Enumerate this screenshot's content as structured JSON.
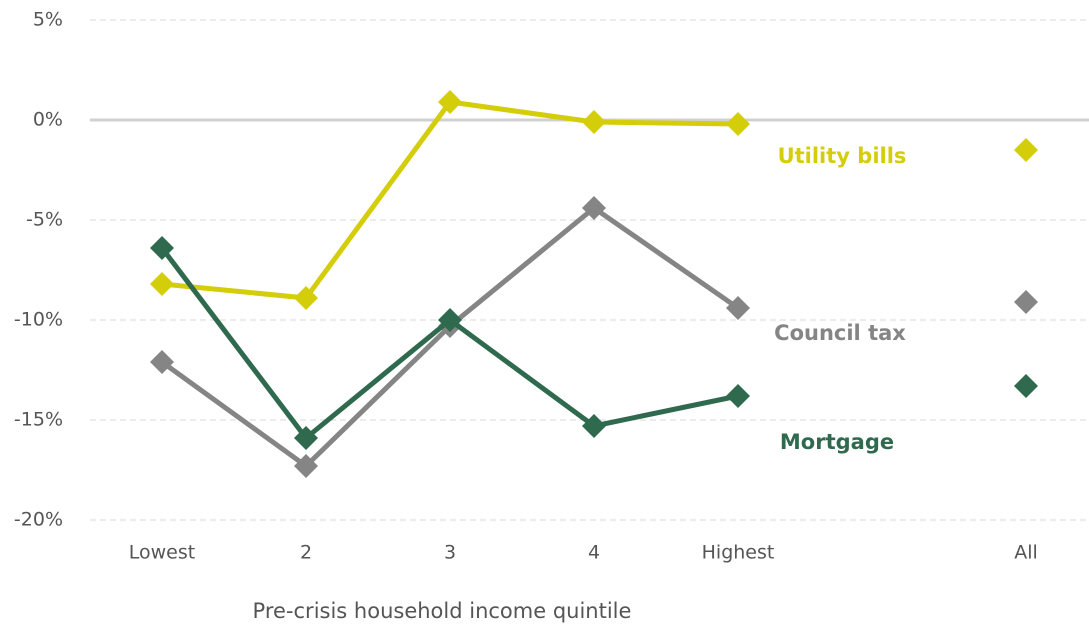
{
  "chart_data": {
    "type": "line",
    "x_label": "Pre-crisis household income quintile",
    "categories": [
      "Lowest",
      "2",
      "3",
      "4",
      "Highest",
      null,
      "All"
    ],
    "series": [
      {
        "name": "Utility bills",
        "color": "#d4cd0a",
        "values": [
          -8.2,
          -8.9,
          0.9,
          -0.1,
          -0.2,
          null,
          -1.5
        ]
      },
      {
        "name": "Council tax",
        "color": "#858585",
        "values": [
          -12.1,
          -17.3,
          -10.3,
          -4.4,
          -9.4,
          null,
          -9.1
        ]
      },
      {
        "name": "Mortgage",
        "color": "#2f6a4f",
        "values": [
          -6.4,
          -15.9,
          -10.0,
          -15.3,
          -13.8,
          null,
          -13.3
        ]
      }
    ],
    "ylim": [
      -20,
      5
    ],
    "yticks": [
      {
        "value": -20,
        "label": "-20%"
      },
      {
        "value": -15,
        "label": "-15%"
      },
      {
        "value": -10,
        "label": "-10%"
      },
      {
        "value": -5,
        "label": "-5%"
      },
      {
        "value": 0,
        "label": "0%"
      },
      {
        "value": 5,
        "label": "5%"
      }
    ],
    "grid": true
  }
}
